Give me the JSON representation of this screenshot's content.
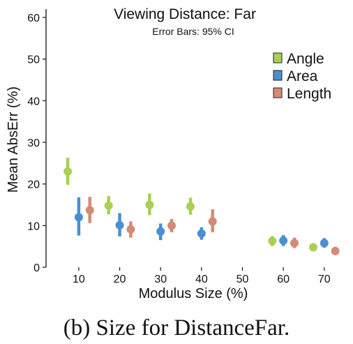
{
  "chart_data": {
    "type": "scatter",
    "title": "Viewing Distance: Far",
    "subtitle": "Error Bars: 95% CI",
    "xlabel": "Modulus Size (%)",
    "ylabel": "Mean AbsErr (%)",
    "ylim": [
      0,
      62
    ],
    "yticks": [
      0,
      10,
      20,
      30,
      40,
      50,
      60
    ],
    "xlim": [
      2,
      76
    ],
    "xticks": [
      10,
      20,
      30,
      40,
      50,
      60,
      70
    ],
    "grid": false,
    "legend_position": "top-right",
    "series": [
      {
        "name": "Angle",
        "color": "#a9cf54",
        "points": [
          {
            "x": 7.3,
            "y": 23,
            "lo": 19.8,
            "hi": 26.3
          },
          {
            "x": 17.3,
            "y": 14.8,
            "lo": 12.7,
            "hi": 17.1
          },
          {
            "x": 27.3,
            "y": 15,
            "lo": 12.5,
            "hi": 17.7
          },
          {
            "x": 37.3,
            "y": 14.6,
            "lo": 12.6,
            "hi": 16.7
          },
          {
            "x": 57.3,
            "y": 6.3,
            "lo": 5.1,
            "hi": 7.5
          },
          {
            "x": 67.3,
            "y": 4.8,
            "lo": 4.0,
            "hi": 5.6
          }
        ]
      },
      {
        "name": "Area",
        "color": "#4a8fd3",
        "points": [
          {
            "x": 10,
            "y": 12,
            "lo": 7.6,
            "hi": 16.8
          },
          {
            "x": 20,
            "y": 10.1,
            "lo": 7.4,
            "hi": 13
          },
          {
            "x": 30,
            "y": 8.6,
            "lo": 6.5,
            "hi": 10.5
          },
          {
            "x": 40,
            "y": 8.1,
            "lo": 6.6,
            "hi": 9.6
          },
          {
            "x": 60,
            "y": 6.4,
            "lo": 5.1,
            "hi": 7.7
          },
          {
            "x": 70,
            "y": 5.8,
            "lo": 4.7,
            "hi": 7.0
          }
        ]
      },
      {
        "name": "Length",
        "color": "#d48b74",
        "points": [
          {
            "x": 12.7,
            "y": 13.7,
            "lo": 10.6,
            "hi": 16.9
          },
          {
            "x": 22.7,
            "y": 9.1,
            "lo": 7.1,
            "hi": 11
          },
          {
            "x": 32.7,
            "y": 10,
            "lo": 8.4,
            "hi": 11.6
          },
          {
            "x": 42.7,
            "y": 11,
            "lo": 8.4,
            "hi": 13.9
          },
          {
            "x": 62.7,
            "y": 5.8,
            "lo": 4.6,
            "hi": 7.1
          },
          {
            "x": 72.7,
            "y": 3.9,
            "lo": 3.0,
            "hi": 4.9
          }
        ]
      }
    ]
  },
  "caption": "(b) Size for DistanceFar."
}
